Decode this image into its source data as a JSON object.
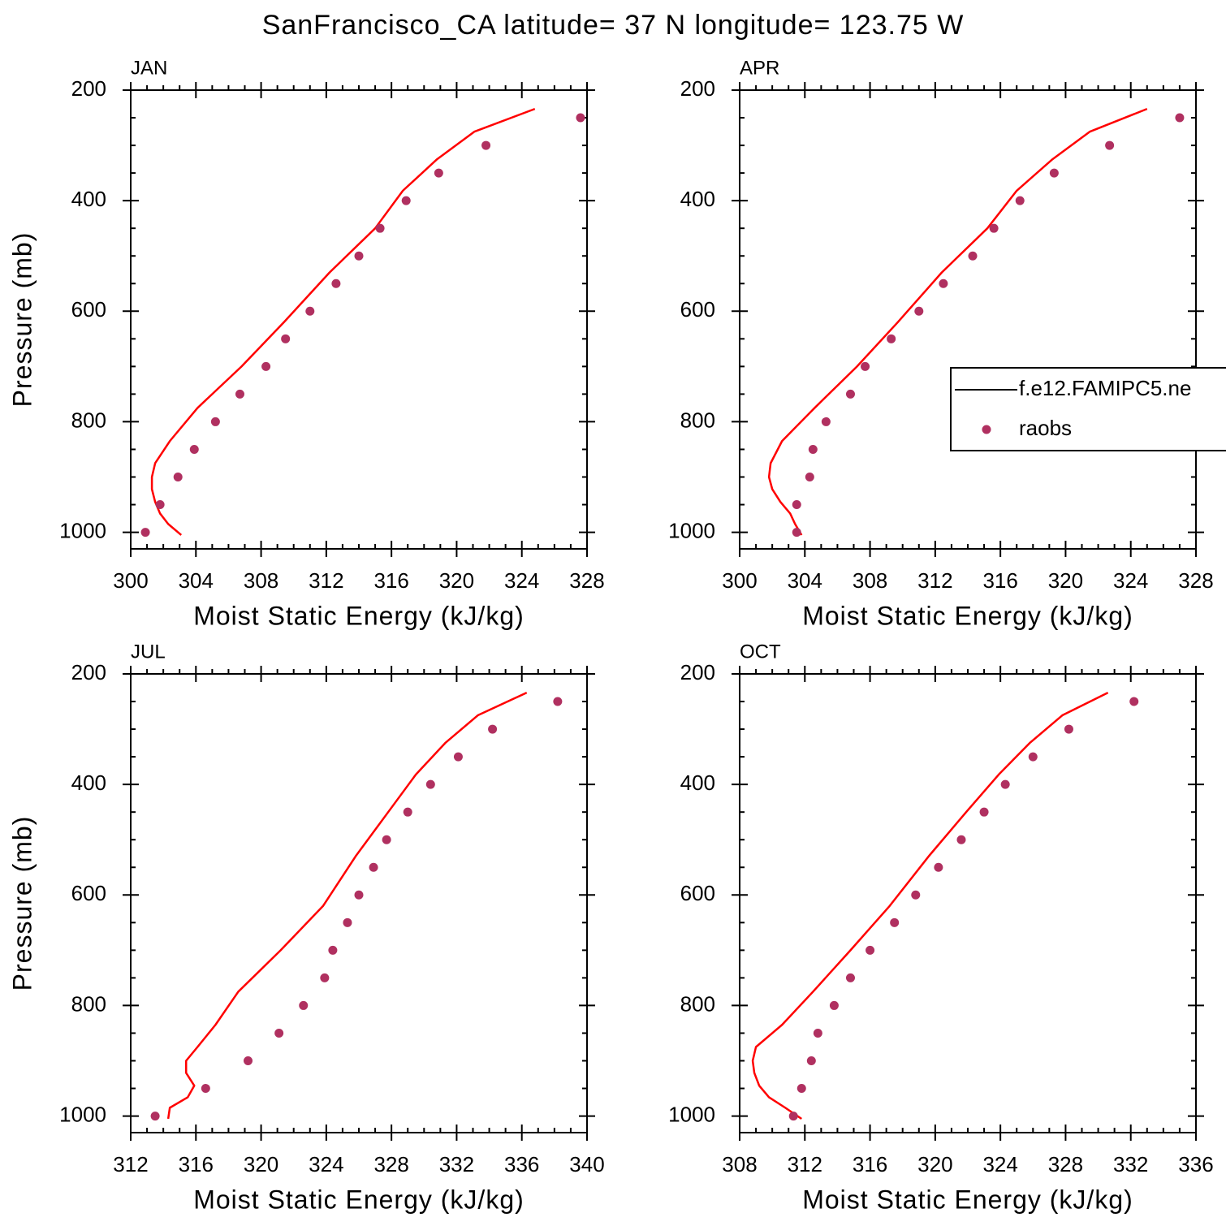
{
  "title": "SanFrancisco_CA  latitude= 37 N longitude= 123.75 W",
  "chart_data": [
    {
      "type": "line",
      "panel_label": "JAN",
      "xlabel": "Moist Static Energy (kJ/kg)",
      "ylabel": "Pressure (mb)",
      "xlim": [
        300,
        328
      ],
      "xticks": [
        300,
        304,
        308,
        312,
        316,
        320,
        324,
        328
      ],
      "ylim": [
        1030,
        200
      ],
      "yticks": [
        200,
        400,
        600,
        800,
        1000
      ],
      "series": [
        {
          "type": "line",
          "color": "#ff0000",
          "x": [
            324.8,
            321.1,
            318.8,
            316.7,
            315.0,
            312.2,
            309.4,
            306.8,
            304.1,
            302.4,
            301.5,
            301.3,
            301.3,
            301.5,
            301.8,
            302.3,
            303.1
          ],
          "values": [
            234,
            275,
            325,
            382,
            450,
            530,
            620,
            700,
            775,
            835,
            875,
            900,
            922,
            945,
            966,
            985,
            1005
          ]
        },
        {
          "type": "scatter",
          "color": "#b03060",
          "x": [
            327.6,
            321.8,
            318.9,
            316.9,
            315.3,
            314.0,
            312.6,
            311.0,
            309.5,
            308.3,
            306.7,
            305.2,
            303.9,
            302.9,
            301.8,
            300.9
          ],
          "values": [
            250,
            300,
            350,
            400,
            450,
            500,
            550,
            600,
            650,
            700,
            750,
            800,
            850,
            900,
            950,
            1000
          ]
        }
      ]
    },
    {
      "type": "line",
      "panel_label": "APR",
      "xlabel": "Moist Static Energy (kJ/kg)",
      "legend": "right",
      "xlim": [
        300,
        328
      ],
      "xticks": [
        300,
        304,
        308,
        312,
        316,
        320,
        324,
        328
      ],
      "ylim": [
        1030,
        200
      ],
      "yticks": [
        200,
        400,
        600,
        800,
        1000
      ],
      "series": [
        {
          "name": "f.e12.FAMIPC5.ne",
          "type": "line",
          "color": "#ff0000",
          "x": [
            325.0,
            321.5,
            319.2,
            317.0,
            315.2,
            312.4,
            309.7,
            307.2,
            304.6,
            302.6,
            301.9,
            301.8,
            302.0,
            302.5,
            303.1,
            303.4,
            303.8
          ],
          "values": [
            234,
            275,
            325,
            382,
            450,
            530,
            620,
            700,
            775,
            835,
            875,
            900,
            922,
            945,
            966,
            985,
            1005
          ]
        },
        {
          "name": "raobs",
          "type": "scatter",
          "color": "#b03060",
          "x": [
            327.0,
            322.7,
            319.3,
            317.2,
            315.6,
            314.3,
            312.5,
            311.0,
            309.3,
            307.7,
            306.8,
            305.3,
            304.5,
            304.3,
            303.5,
            303.5
          ],
          "values": [
            250,
            300,
            350,
            400,
            450,
            500,
            550,
            600,
            650,
            700,
            750,
            800,
            850,
            900,
            950,
            1000
          ]
        }
      ]
    },
    {
      "type": "line",
      "panel_label": "JUL",
      "xlabel": "Moist Static Energy (kJ/kg)",
      "ylabel": "Pressure (mb)",
      "xlim": [
        312,
        340
      ],
      "xticks": [
        312,
        316,
        320,
        324,
        328,
        332,
        336,
        340
      ],
      "ylim": [
        1030,
        200
      ],
      "yticks": [
        200,
        400,
        600,
        800,
        1000
      ],
      "series": [
        {
          "type": "line",
          "color": "#ff0000",
          "x": [
            336.3,
            333.3,
            331.3,
            329.5,
            327.8,
            325.8,
            323.8,
            321.2,
            318.6,
            317.2,
            316.1,
            315.4,
            315.4,
            315.9,
            315.5,
            314.4,
            314.3
          ],
          "values": [
            234,
            275,
            325,
            382,
            450,
            530,
            620,
            700,
            775,
            835,
            875,
            900,
            922,
            945,
            966,
            985,
            1005
          ]
        },
        {
          "type": "scatter",
          "color": "#b03060",
          "x": [
            338.2,
            334.2,
            332.1,
            330.4,
            329.0,
            327.7,
            326.9,
            326.0,
            325.3,
            324.4,
            323.9,
            322.6,
            321.1,
            319.2,
            316.6,
            313.5
          ],
          "values": [
            250,
            300,
            350,
            400,
            450,
            500,
            550,
            600,
            650,
            700,
            750,
            800,
            850,
            900,
            950,
            1000
          ]
        }
      ]
    },
    {
      "type": "line",
      "panel_label": "OCT",
      "xlabel": "Moist Static Energy (kJ/kg)",
      "xlim": [
        308,
        336
      ],
      "xticks": [
        308,
        312,
        316,
        320,
        324,
        328,
        332,
        336
      ],
      "ylim": [
        1030,
        200
      ],
      "yticks": [
        200,
        400,
        600,
        800,
        1000
      ],
      "series": [
        {
          "type": "line",
          "color": "#ff0000",
          "x": [
            330.6,
            327.8,
            325.8,
            323.9,
            321.9,
            319.6,
            317.2,
            314.8,
            312.5,
            310.6,
            309.0,
            308.8,
            308.9,
            309.2,
            309.8,
            310.8,
            311.8
          ],
          "values": [
            234,
            275,
            325,
            382,
            450,
            530,
            620,
            700,
            775,
            835,
            875,
            900,
            922,
            945,
            966,
            985,
            1005
          ]
        },
        {
          "type": "scatter",
          "color": "#b03060",
          "x": [
            332.2,
            328.2,
            326.0,
            324.3,
            323.0,
            321.6,
            320.2,
            318.8,
            317.5,
            316.0,
            314.8,
            313.8,
            312.8,
            312.4,
            311.8,
            311.3
          ],
          "values": [
            250,
            300,
            350,
            400,
            450,
            500,
            550,
            600,
            650,
            700,
            750,
            800,
            850,
            900,
            950,
            1000
          ]
        }
      ]
    }
  ]
}
